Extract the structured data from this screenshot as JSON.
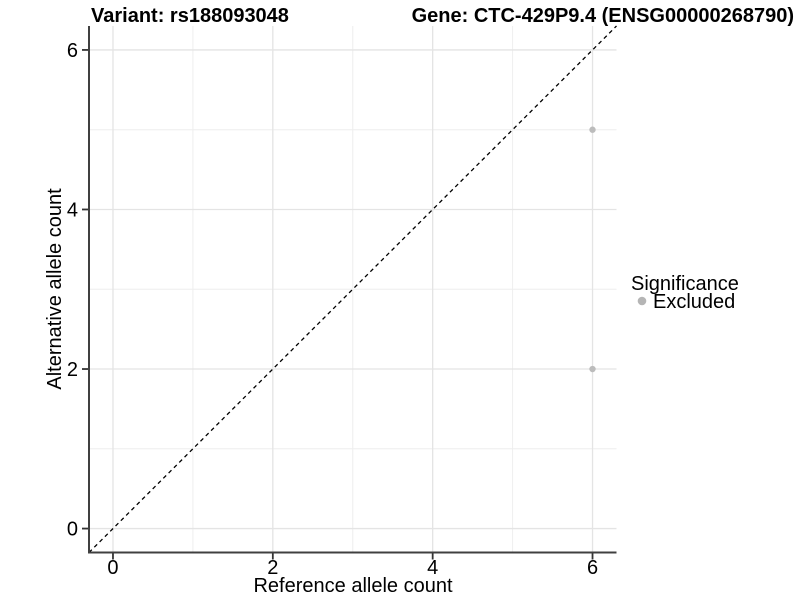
{
  "titles": {
    "variant": "Variant: rs188093048",
    "gene": "Gene: CTC-429P9.4 (ENSG00000268790)"
  },
  "legend": {
    "title": "Significance",
    "items": [
      {
        "label": "Excluded",
        "color": "#b5b5b5"
      }
    ]
  },
  "colors": {
    "background": "#ffffff",
    "axis_line": "#404040",
    "tick_mark": "#333333",
    "grid_major": "#e4e4e4",
    "grid_minor": "#eeeeee",
    "identity_line": "#000000",
    "point_excluded": "#bcbcbc",
    "text": "#000000"
  },
  "chart_data": {
    "type": "scatter",
    "title": "Variant: rs188093048 | Gene: CTC-429P9.4 (ENSG00000268790)",
    "xlabel": "Reference allele count",
    "ylabel": "Alternative allele count",
    "xlim": [
      -0.3,
      6.3
    ],
    "ylim": [
      -0.3,
      6.3
    ],
    "x_ticks": [
      0,
      2,
      4,
      6
    ],
    "y_ticks": [
      0,
      2,
      4,
      6
    ],
    "x_minor_grid": [
      1,
      3,
      5
    ],
    "y_minor_grid": [
      1,
      3,
      5
    ],
    "grid": true,
    "legend_position": "right",
    "series": [
      {
        "name": "Excluded",
        "color": "#bcbcbc",
        "points": [
          {
            "x": 6,
            "y": 5
          },
          {
            "x": 6,
            "y": 2
          }
        ]
      }
    ],
    "reference_line": {
      "type": "identity",
      "slope": 1,
      "intercept": 0,
      "style": "dashed",
      "color": "#000000"
    }
  }
}
